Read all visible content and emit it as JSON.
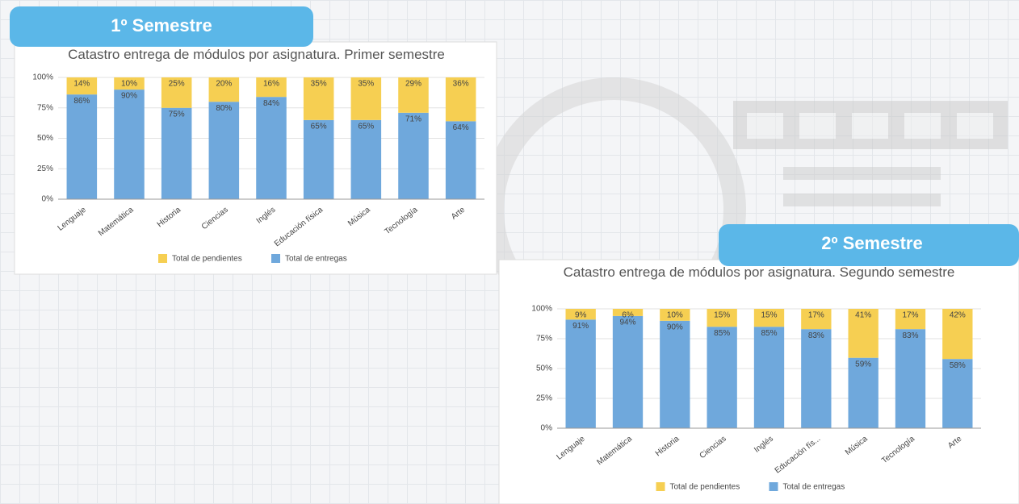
{
  "sections": [
    {
      "label": "1º Semestre"
    },
    {
      "label": "2º Semestre"
    }
  ],
  "chart_data": [
    {
      "type": "bar",
      "stacked": true,
      "title": "Catastro entrega de módulos por asignatura. Primer semestre",
      "categories": [
        "Lenguaje",
        "Matemática",
        "Historia",
        "Ciencias",
        "Inglés",
        "Educación física",
        "Música",
        "Tecnología",
        "Arte"
      ],
      "series": [
        {
          "name": "Total de pendientes",
          "color": "#f6cf52",
          "values": [
            14,
            10,
            25,
            20,
            16,
            35,
            35,
            29,
            36
          ],
          "value_labels": [
            "14%",
            "10%",
            "25%",
            "20%",
            "16%",
            "35%",
            "35%",
            "29%",
            "36%"
          ]
        },
        {
          "name": "Total de entregas",
          "color": "#6fa8dc",
          "values": [
            86,
            90,
            75,
            80,
            84,
            65,
            65,
            71,
            64
          ],
          "value_labels": [
            "86%",
            "90%",
            "75%",
            "80%",
            "84%",
            "65%",
            "65%",
            "71%",
            "64%"
          ]
        }
      ],
      "ylim": [
        0,
        100
      ],
      "yticks": [
        {
          "value": 0,
          "label": "0%"
        },
        {
          "value": 25,
          "label": "25%"
        },
        {
          "value": 50,
          "label": "50%"
        },
        {
          "value": 75,
          "label": "75%"
        },
        {
          "value": 100,
          "label": "100%"
        }
      ],
      "grid": true,
      "legend": "bottom"
    },
    {
      "type": "bar",
      "stacked": true,
      "title": "Catastro entrega de módulos por asignatura. Segundo semestre",
      "categories": [
        "Lenguaje",
        "Matemática",
        "Historia",
        "Ciencias",
        "Inglés",
        "Educación fís...",
        "Música",
        "Tecnología",
        "Arte"
      ],
      "series": [
        {
          "name": "Total de pendientes",
          "color": "#f6cf52",
          "values": [
            9,
            6,
            10,
            15,
            15,
            17,
            41,
            17,
            42
          ],
          "value_labels": [
            "9%",
            "6%",
            "10%",
            "15%",
            "15%",
            "17%",
            "41%",
            "17%",
            "42%"
          ]
        },
        {
          "name": "Total de entregas",
          "color": "#6fa8dc",
          "values": [
            91,
            94,
            90,
            85,
            85,
            83,
            59,
            83,
            58
          ],
          "value_labels": [
            "91%",
            "94%",
            "90%",
            "85%",
            "85%",
            "83%",
            "59%",
            "83%",
            "58%"
          ]
        }
      ],
      "ylim": [
        0,
        100
      ],
      "yticks": [
        {
          "value": 0,
          "label": "0%"
        },
        {
          "value": 25,
          "label": "25%"
        },
        {
          "value": 50,
          "label": "50%"
        },
        {
          "value": 75,
          "label": "75%"
        },
        {
          "value": 100,
          "label": "100%"
        }
      ],
      "grid": true,
      "legend": "bottom"
    }
  ]
}
